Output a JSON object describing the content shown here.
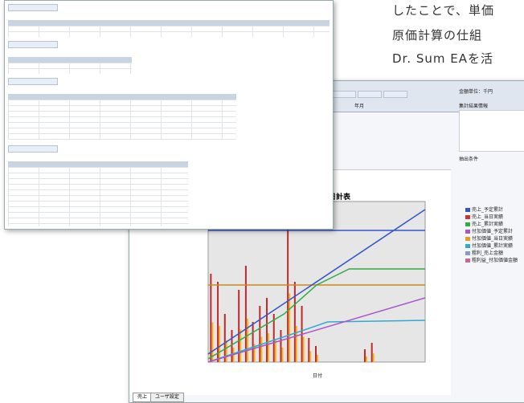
{
  "body_text": [
    "したことで、単価",
    "原価計算の仕組",
    "Dr. Sum EAを活"
  ],
  "chart_window": {
    "title": "売上日計表",
    "x_axis_label": "日付",
    "month_label": "年月",
    "unit": "金額単位：千円",
    "result_info": "集計結果情報",
    "filter": "抽出条件",
    "legend": [
      "売上_予定累計",
      "売上_当日実績",
      "売上_累計実績",
      "付加価値_予定累計",
      "付加価値_当日実績",
      "付加価値_累計実績",
      "粗利_売上金額",
      "粗利益_付加価値金額"
    ],
    "tabs": [
      "売上",
      "ユーザ設定"
    ]
  }
}
